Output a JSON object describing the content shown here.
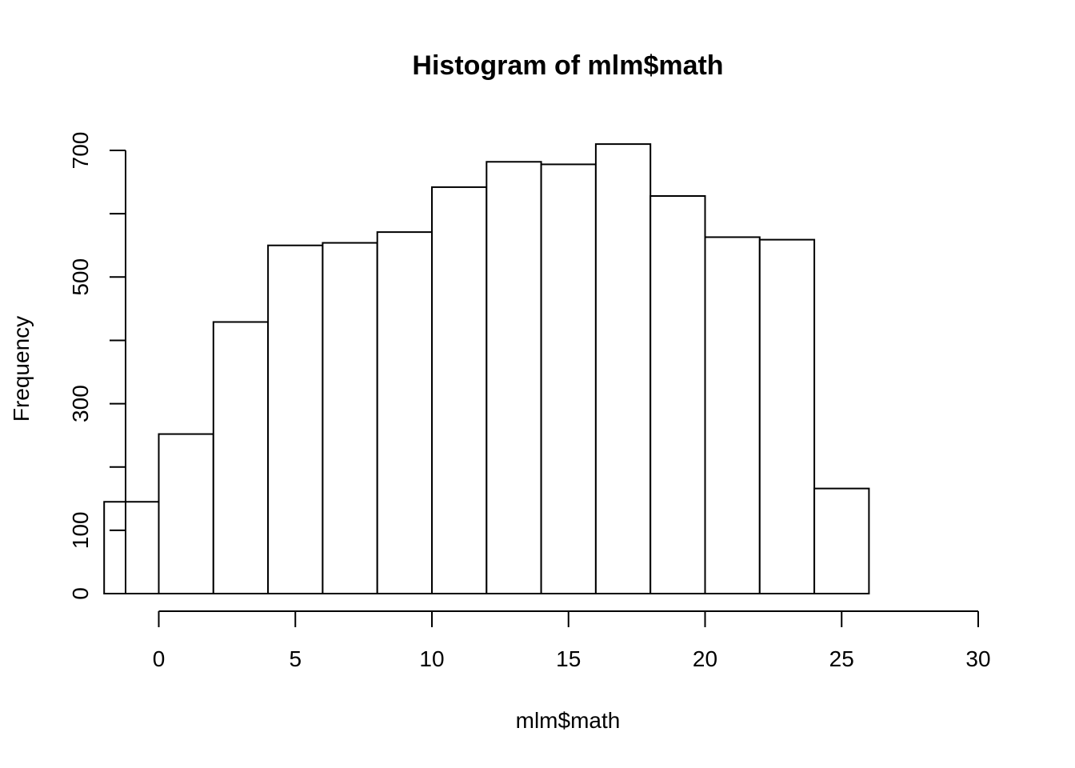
{
  "chart_data": {
    "type": "bar",
    "title": "Histogram of mlm$math",
    "xlabel": "mlm$math",
    "ylabel": "Frequency",
    "bins": [
      {
        "start": -2,
        "end": 0,
        "value": 145
      },
      {
        "start": 0,
        "end": 2,
        "value": 252
      },
      {
        "start": 2,
        "end": 4,
        "value": 429
      },
      {
        "start": 4,
        "end": 6,
        "value": 550
      },
      {
        "start": 6,
        "end": 8,
        "value": 554
      },
      {
        "start": 8,
        "end": 10,
        "value": 571
      },
      {
        "start": 10,
        "end": 12,
        "value": 642
      },
      {
        "start": 12,
        "end": 14,
        "value": 682
      },
      {
        "start": 14,
        "end": 16,
        "value": 678
      },
      {
        "start": 16,
        "end": 18,
        "value": 710
      },
      {
        "start": 18,
        "end": 20,
        "value": 628
      },
      {
        "start": 20,
        "end": 22,
        "value": 563
      },
      {
        "start": 22,
        "end": 24,
        "value": 559
      },
      {
        "start": 24,
        "end": 26,
        "value": 166
      }
    ],
    "xlim": [
      -2,
      30
    ],
    "ylim": [
      0,
      720
    ],
    "x_ticks": [
      0,
      5,
      10,
      15,
      20,
      25,
      30
    ],
    "y_ticks": [
      0,
      100,
      200,
      300,
      400,
      500,
      600,
      700
    ],
    "y_tick_labels": [
      "0",
      "100",
      "",
      "300",
      "",
      "500",
      "",
      "700"
    ],
    "grid": false,
    "legend": "none"
  }
}
